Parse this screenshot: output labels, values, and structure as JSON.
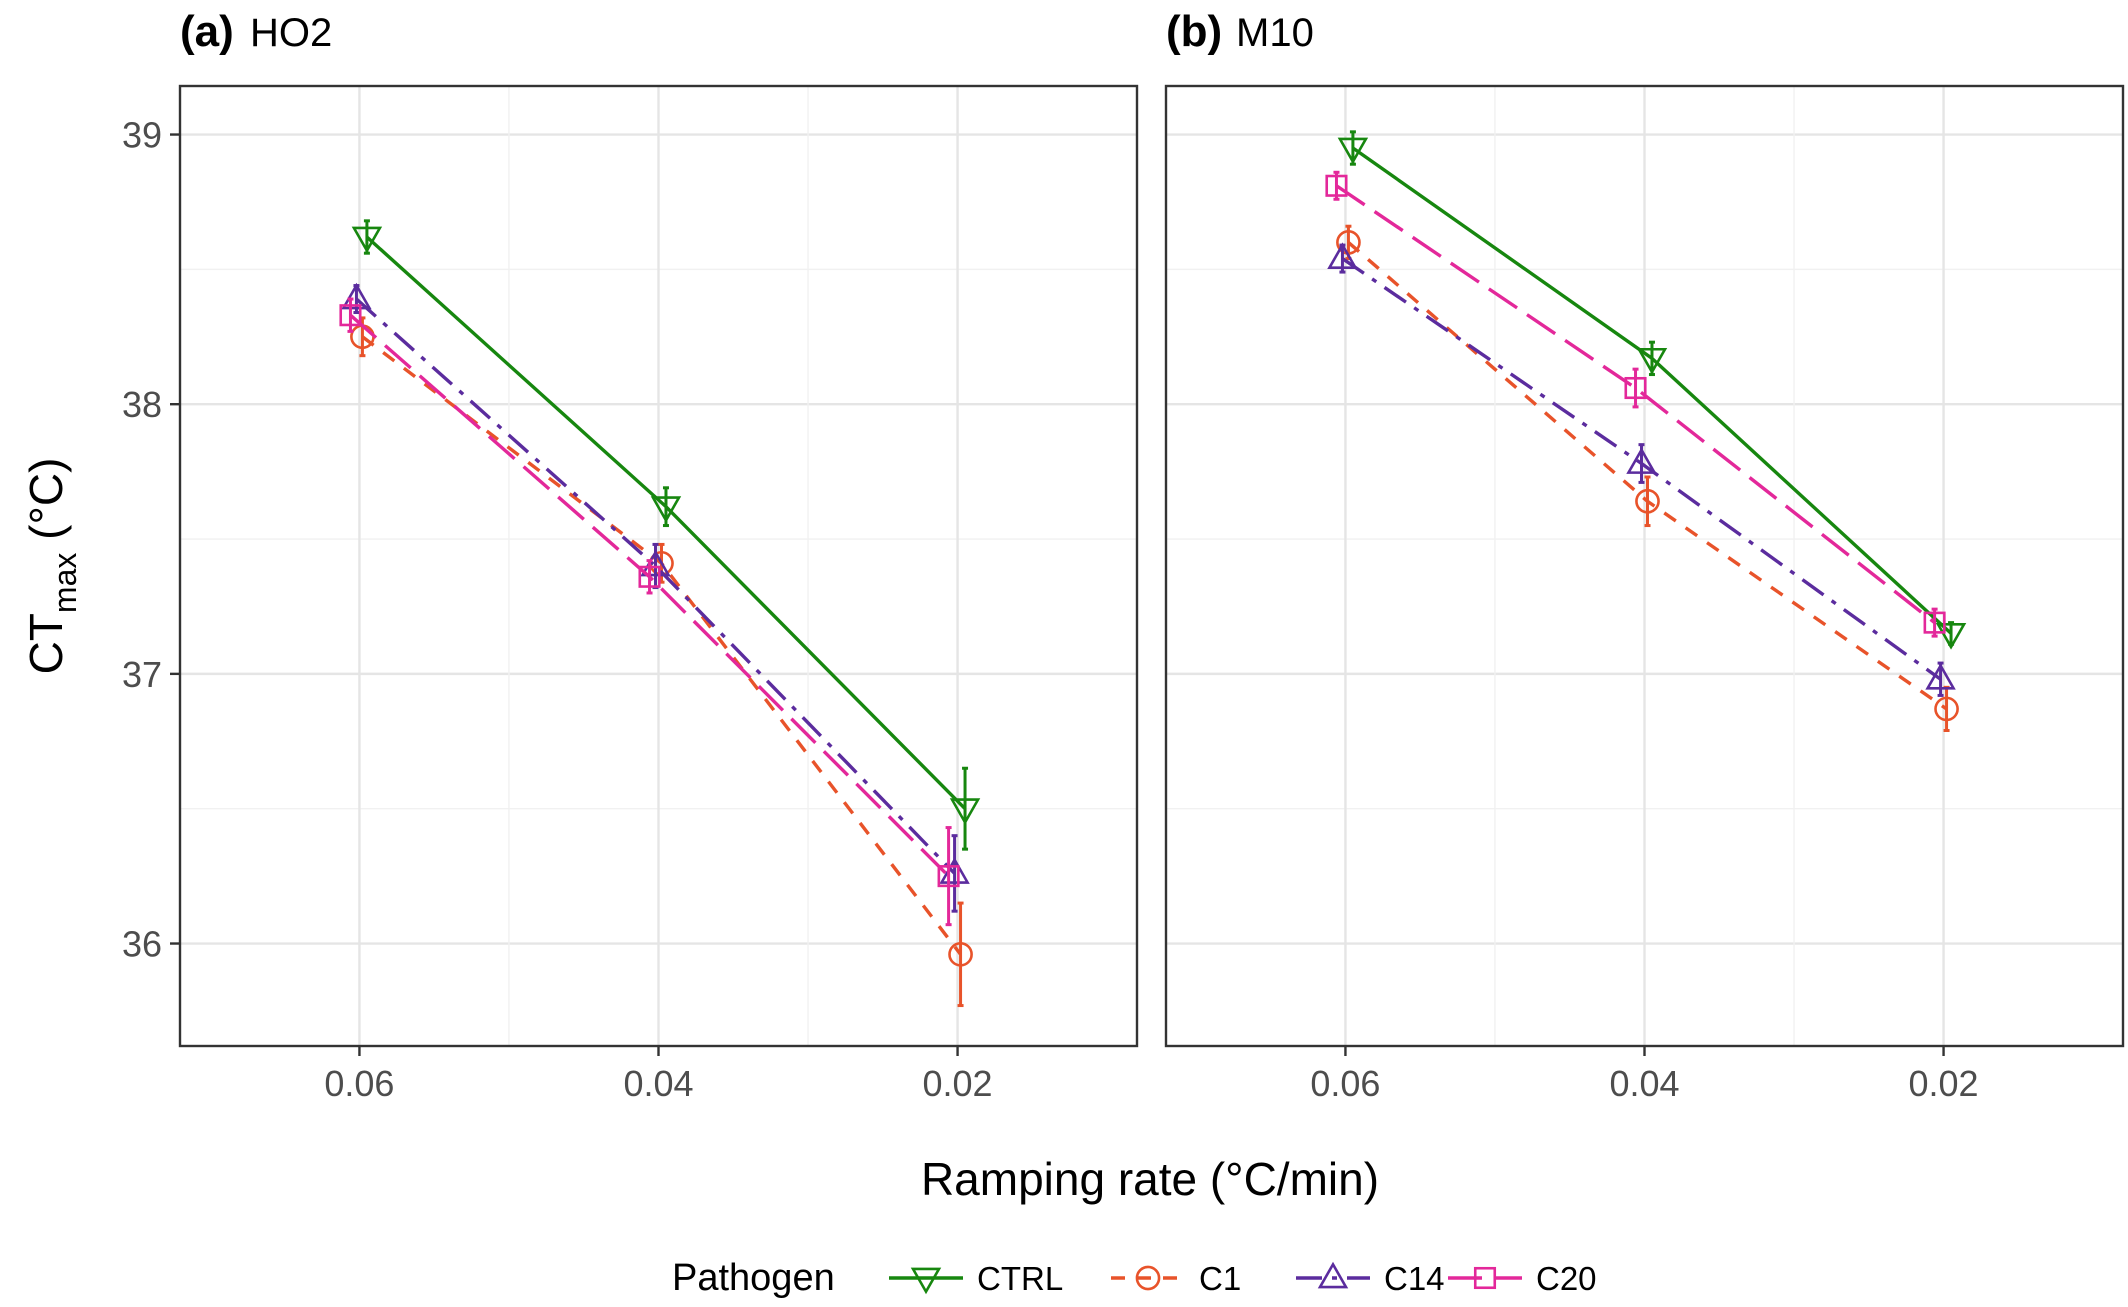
{
  "chart_data": {
    "type": "line",
    "xlabel": "Ramping rate (°C/min)",
    "ylabel_main": "CT",
    "ylabel_sub": "max",
    "ylabel_unit": " (°C)",
    "x_reversed": true,
    "xlim": [
      0.072,
      0.008
    ],
    "ylim": [
      35.62,
      39.18
    ],
    "x_ticks": [
      0.06,
      0.04,
      0.02
    ],
    "x_tick_labels": [
      "0.06",
      "0.04",
      "0.02"
    ],
    "y_ticks": [
      36,
      37,
      38,
      39
    ],
    "y_tick_labels": [
      "36",
      "37",
      "38",
      "39"
    ],
    "grid": true,
    "legend_position": "bottom",
    "legend_title": "Pathogen",
    "series_styles": [
      {
        "name": "CTRL",
        "color": "#17870F",
        "dash": "",
        "marker": "triangle-down",
        "offset": -0.0005
      },
      {
        "name": "C1",
        "color": "#E8532A",
        "dash": "14,12",
        "marker": "circle",
        "offset": -0.0002
      },
      {
        "name": "C14",
        "color": "#5B2C9E",
        "dash": "26,10,5,10",
        "marker": "triangle-up",
        "offset": 0.0002
      },
      {
        "name": "C20",
        "color": "#E3289A",
        "dash": "34,12",
        "marker": "square",
        "offset": 0.0006
      }
    ],
    "panels": [
      {
        "tag": "(a)",
        "title": "HO2",
        "series": [
          {
            "name": "CTRL",
            "x": [
              0.06,
              0.04,
              0.02
            ],
            "y": [
              38.62,
              37.62,
              36.5
            ],
            "err": [
              0.06,
              0.07,
              0.15
            ]
          },
          {
            "name": "C1",
            "x": [
              0.06,
              0.04,
              0.02
            ],
            "y": [
              38.25,
              37.41,
              35.96
            ],
            "err": [
              0.07,
              0.07,
              0.19
            ]
          },
          {
            "name": "C14",
            "x": [
              0.06,
              0.04,
              0.02
            ],
            "y": [
              38.39,
              37.4,
              36.26
            ],
            "err": [
              0.05,
              0.08,
              0.14
            ]
          },
          {
            "name": "C20",
            "x": [
              0.06,
              0.04,
              0.02
            ],
            "y": [
              38.33,
              37.36,
              36.25
            ],
            "err": [
              0.06,
              0.06,
              0.18
            ]
          }
        ]
      },
      {
        "tag": "(b)",
        "title": "M10",
        "series": [
          {
            "name": "CTRL",
            "x": [
              0.06,
              0.04,
              0.02
            ],
            "y": [
              38.95,
              38.17,
              37.15
            ],
            "err": [
              0.06,
              0.06,
              0.04
            ]
          },
          {
            "name": "C1",
            "x": [
              0.06,
              0.04,
              0.02
            ],
            "y": [
              38.6,
              37.64,
              36.87
            ],
            "err": [
              0.06,
              0.09,
              0.08
            ]
          },
          {
            "name": "C14",
            "x": [
              0.06,
              0.04,
              0.02
            ],
            "y": [
              38.54,
              37.78,
              36.98
            ],
            "err": [
              0.05,
              0.07,
              0.06
            ]
          },
          {
            "name": "C20",
            "x": [
              0.06,
              0.04,
              0.02
            ],
            "y": [
              38.81,
              38.06,
              37.19
            ],
            "err": [
              0.05,
              0.07,
              0.05
            ]
          }
        ]
      }
    ]
  }
}
